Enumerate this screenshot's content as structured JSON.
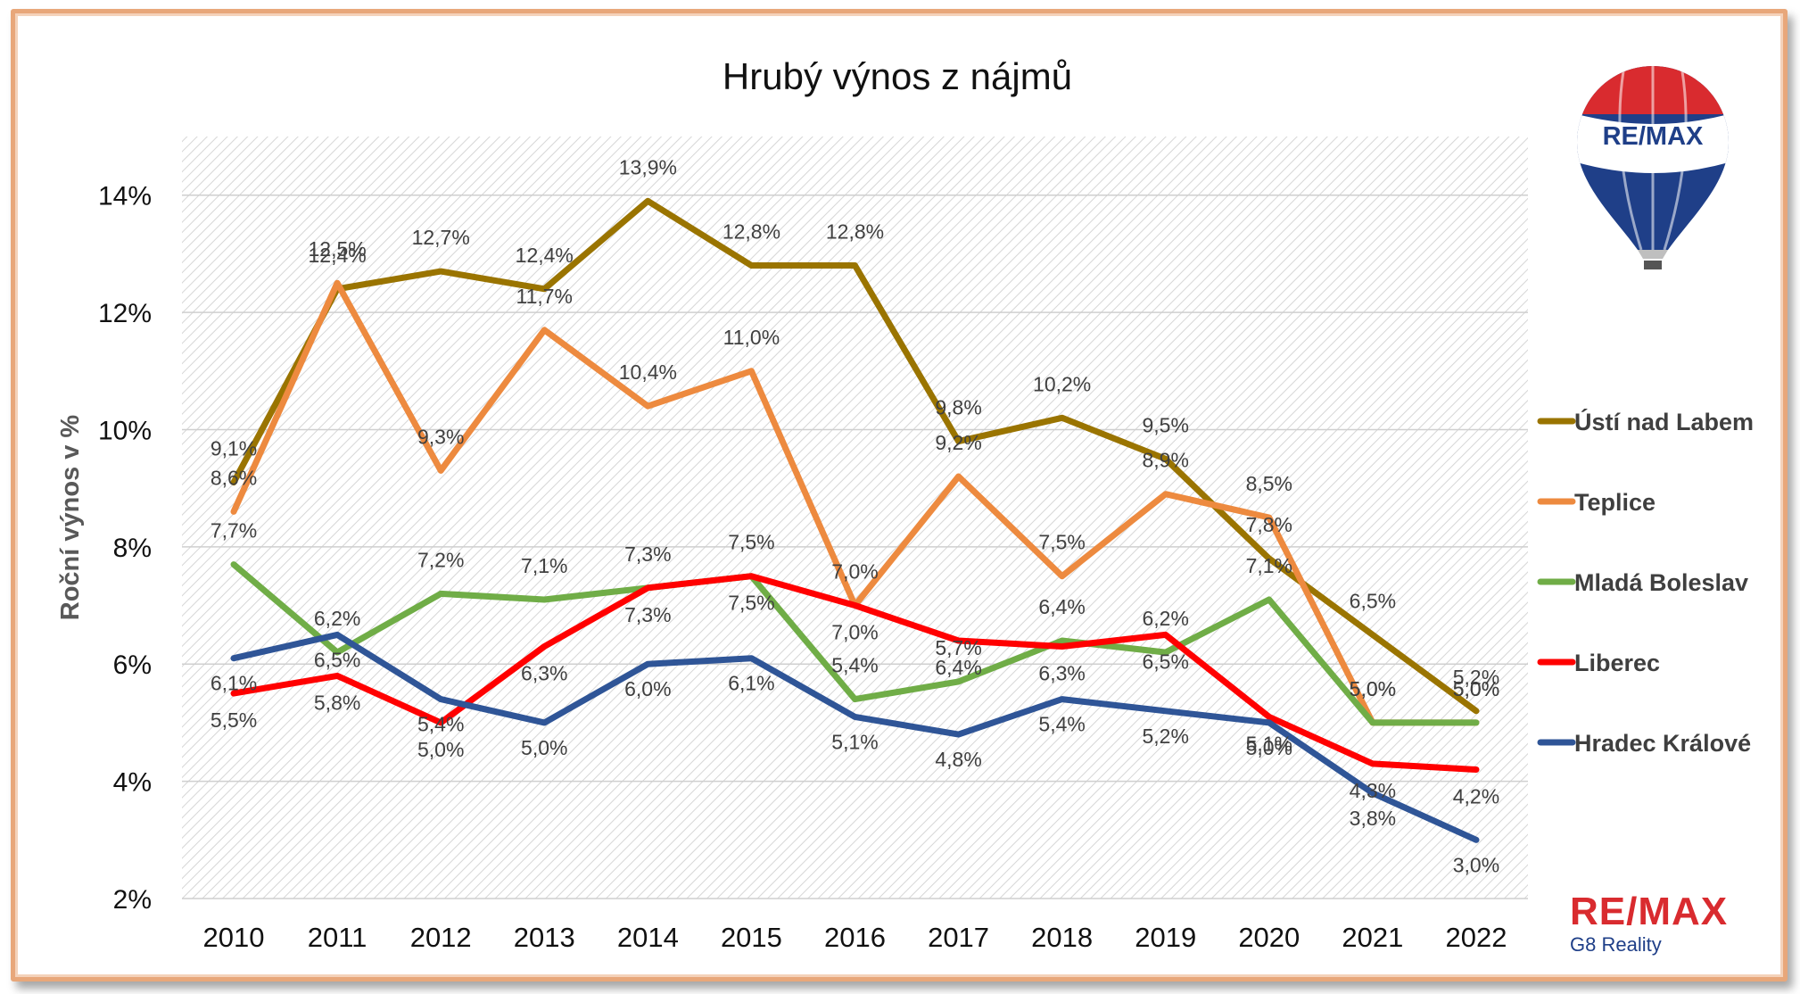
{
  "chart_data": {
    "type": "line",
    "title": "Hrubý výnos z nájmů",
    "xlabel": "",
    "ylabel": "Roční výnos v %",
    "ylim": [
      2,
      15
    ],
    "yticks": [
      "2%",
      "4%",
      "6%",
      "8%",
      "10%",
      "12%",
      "14%"
    ],
    "ytick_values": [
      2,
      4,
      6,
      8,
      10,
      12,
      14
    ],
    "grid": "horizontal",
    "legend_position": "right",
    "categories": [
      "2010",
      "2011",
      "2012",
      "2013",
      "2014",
      "2015",
      "2016",
      "2017",
      "2018",
      "2019",
      "2020",
      "2021",
      "2022"
    ],
    "series": [
      {
        "name": "Ústí nad Labem",
        "color": "#9a7400",
        "values": [
          9.1,
          12.4,
          12.7,
          12.4,
          13.9,
          12.8,
          12.8,
          9.8,
          10.2,
          9.5,
          7.8,
          6.5,
          5.2
        ],
        "labels": [
          "9,1%",
          "12,4%",
          "12,7%",
          "12,4%",
          "13,9%",
          "12,8%",
          "12,8%",
          "9,8%",
          "10,2%",
          "9,5%",
          "7,8%",
          "6,5%",
          "5,2%"
        ]
      },
      {
        "name": "Teplice",
        "color": "#ed8a3f",
        "values": [
          8.6,
          12.5,
          9.3,
          11.7,
          10.4,
          11.0,
          7.0,
          9.2,
          7.5,
          8.9,
          8.5,
          5.0,
          5.0
        ],
        "labels": [
          "8,6%",
          "12,5%",
          "9,3%",
          "11,7%",
          "10,4%",
          "11,0%",
          "7,0%",
          "9,2%",
          "7,5%",
          "8,9%",
          "8,5%",
          "5,0%",
          "5,0%"
        ]
      },
      {
        "name": "Mladá Boleslav",
        "color": "#70ad47",
        "values": [
          7.7,
          6.2,
          7.2,
          7.1,
          7.3,
          7.5,
          5.4,
          5.7,
          6.4,
          6.2,
          7.1,
          5.0,
          5.0
        ],
        "labels": [
          "7,7%",
          "6,2%",
          "7,2%",
          "7,1%",
          "7,3%",
          "7,5%",
          "5,4%",
          "5,7%",
          "6,4%",
          "6,2%",
          "7,1%",
          "5,0%",
          "5,0%"
        ]
      },
      {
        "name": "Liberec",
        "color": "#ff0000",
        "values": [
          5.5,
          5.8,
          5.0,
          6.3,
          7.3,
          7.5,
          7.0,
          6.4,
          6.3,
          6.5,
          5.1,
          4.3,
          4.2
        ],
        "labels": [
          "5,5%",
          "5,8%",
          "5,0%",
          "6,3%",
          "7,3%",
          "7,5%",
          "7,0%",
          "6,4%",
          "6,3%",
          "6,5%",
          "5,1%",
          "4,3%",
          "4,2%"
        ]
      },
      {
        "name": "Hradec Králové",
        "color": "#2f5597",
        "values": [
          6.1,
          6.5,
          5.4,
          5.0,
          6.0,
          6.1,
          5.1,
          4.8,
          5.4,
          5.2,
          5.0,
          3.8,
          3.0
        ],
        "labels": [
          "6,1%",
          "6,5%",
          "5,4%",
          "5,0%",
          "6,0%",
          "6,1%",
          "5,1%",
          "4,8%",
          "5,4%",
          "5,2%",
          "5,0%",
          "3,8%",
          "3,0%"
        ]
      }
    ]
  },
  "branding": {
    "balloon_text": "RE/MAX",
    "logo_main": "RE/MAX",
    "logo_sub": "G8 Reality",
    "brand_red": "#d92b2f",
    "brand_blue": "#1f3f88"
  }
}
